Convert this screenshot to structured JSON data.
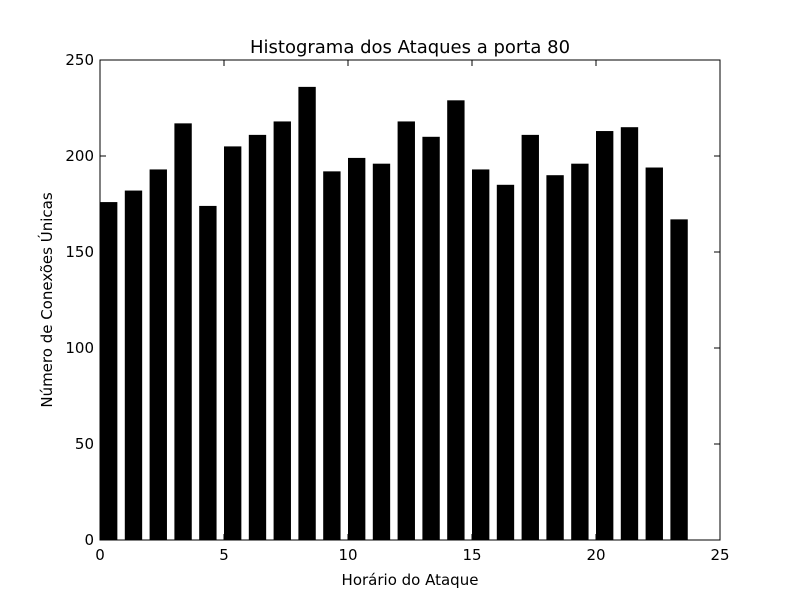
{
  "chart_data": {
    "type": "bar",
    "title": "Histograma dos Ataques a porta 80",
    "xlabel": "Horário do Ataque",
    "ylabel": "Número de Conexões Únicas",
    "x": [
      0,
      1,
      2,
      3,
      4,
      5,
      6,
      7,
      8,
      9,
      10,
      11,
      12,
      13,
      14,
      15,
      16,
      17,
      18,
      19,
      20,
      21,
      22,
      23
    ],
    "values": [
      176,
      182,
      193,
      217,
      174,
      205,
      211,
      218,
      236,
      192,
      199,
      196,
      218,
      210,
      229,
      193,
      185,
      211,
      190,
      196,
      213,
      215,
      194,
      167
    ],
    "bar_width": 0.7,
    "xlim": [
      0,
      25
    ],
    "ylim": [
      0,
      250
    ],
    "xticks": [
      "0",
      "5",
      "10",
      "15",
      "20",
      "25"
    ],
    "yticks": [
      "0",
      "50",
      "100",
      "150",
      "200",
      "250"
    ],
    "bar_color": "#000000",
    "grid": false,
    "legend": "none"
  }
}
